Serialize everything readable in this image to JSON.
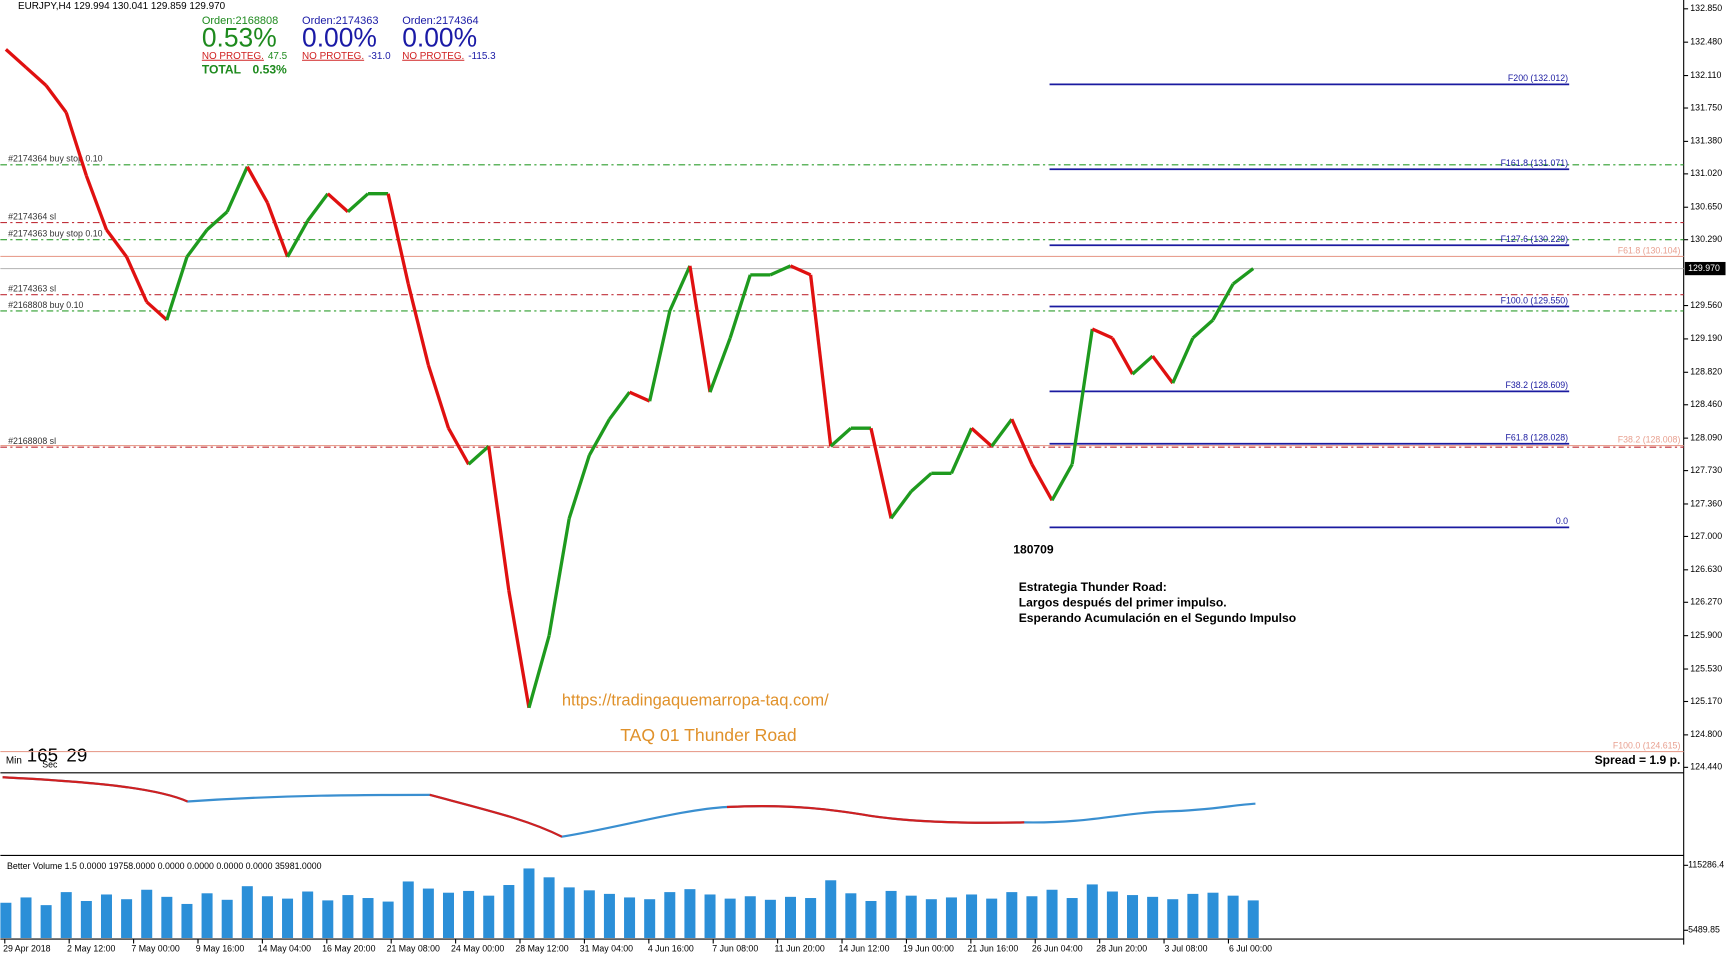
{
  "header": "EURJPY,H4  129.994 130.041 129.859 129.970",
  "orders": [
    {
      "id": "Orden:2168808",
      "pct": "0.53%",
      "status": "NO PROTEG.",
      "pl": "47.5",
      "color": "#1e8a1e"
    },
    {
      "id": "Orden:2174363",
      "pct": "0.00%",
      "status": "NO PROTEG.",
      "pl": "-31.0",
      "color": "#1a1aa6"
    },
    {
      "id": "Orden:2174364",
      "pct": "0.00%",
      "status": "NO PROTEG.",
      "pl": "-115.3",
      "color": "#1a1aa6"
    }
  ],
  "total": {
    "label": "TOTAL",
    "value": "0.53%"
  },
  "price_axis": {
    "range": [
      124.44,
      132.85
    ],
    "ticks": [
      {
        "value": 132.85,
        "label": "132.850"
      },
      {
        "value": 132.48,
        "label": "132.480"
      },
      {
        "value": 132.11,
        "label": "132.110"
      },
      {
        "value": 131.75,
        "label": "131.750"
      },
      {
        "value": 131.38,
        "label": "131.380"
      },
      {
        "value": 131.02,
        "label": "131.020"
      },
      {
        "value": 130.65,
        "label": "130.650"
      },
      {
        "value": 130.29,
        "label": "130.290"
      },
      {
        "value": 129.56,
        "label": "129.560"
      },
      {
        "value": 129.19,
        "label": "129.190"
      },
      {
        "value": 128.82,
        "label": "128.820"
      },
      {
        "value": 128.46,
        "label": "128.460"
      },
      {
        "value": 128.09,
        "label": "128.090"
      },
      {
        "value": 127.73,
        "label": "127.730"
      },
      {
        "value": 127.36,
        "label": "127.360"
      },
      {
        "value": 127,
        "label": "127.000"
      },
      {
        "value": 126.63,
        "label": "126.630"
      },
      {
        "value": 126.27,
        "label": "126.270"
      },
      {
        "value": 125.9,
        "label": "125.900"
      },
      {
        "value": 125.53,
        "label": "125.530"
      },
      {
        "value": 125.17,
        "label": "125.170"
      },
      {
        "value": 124.8,
        "label": "124.800"
      },
      {
        "value": 124.44,
        "label": "124.440"
      }
    ],
    "current": {
      "value": 129.97,
      "label": "129.970"
    }
  },
  "order_lines": [
    {
      "label": "#2174364 buy stop 0.10",
      "price": 131.12,
      "color": "#2e9e2e"
    },
    {
      "label": "#2174364 sl",
      "price": 130.48,
      "color": "#c0303a"
    },
    {
      "label": "#2174363 buy stop 0.10",
      "price": 130.29,
      "color": "#2e9e2e"
    },
    {
      "label": "#2174363 sl",
      "price": 129.68,
      "color": "#c0303a"
    },
    {
      "label": "#2168808 buy 0.10",
      "price": 129.5,
      "color": "#2e9e2e"
    },
    {
      "label": "#2168808 sl",
      "price": 127.99,
      "color": "#c0303a"
    }
  ],
  "fib_lines": [
    {
      "label": "F200 (132.012)",
      "price": 132.012
    },
    {
      "label": "F161.8 (131.071)",
      "price": 131.071
    },
    {
      "label": "F127.6 (130.229)",
      "price": 130.229
    },
    {
      "label": "F100.0 (129.550)",
      "price": 129.55
    },
    {
      "label": "F38.2 (128.609)",
      "price": 128.609
    },
    {
      "label": "F61.8 (128.028)",
      "price": 128.028
    },
    {
      "label": "0.0",
      "price": 127.1
    }
  ],
  "fib_lines_2": [
    {
      "label": "F61.8 (130.104)",
      "price": 130.104
    },
    {
      "label": "F38.2 (128.008)",
      "price": 128.008
    },
    {
      "label": "F100.0 (124.615)",
      "price": 124.615
    }
  ],
  "price_trace": [
    132.4,
    132.2,
    132.0,
    131.7,
    131.0,
    130.4,
    130.1,
    129.6,
    129.4,
    130.1,
    130.4,
    130.6,
    131.1,
    130.7,
    130.1,
    130.5,
    130.8,
    130.6,
    130.8,
    130.8,
    129.8,
    128.9,
    128.2,
    127.8,
    128.0,
    126.4,
    125.1,
    125.9,
    127.2,
    127.9,
    128.3,
    128.6,
    128.5,
    129.5,
    130.0,
    128.6,
    129.2,
    129.9,
    129.9,
    130.0,
    129.9,
    128.0,
    128.2,
    128.2,
    127.2,
    127.5,
    127.7,
    127.7,
    128.2,
    128.0,
    128.3,
    127.8,
    127.4,
    127.8,
    129.3,
    129.2,
    128.8,
    129.0,
    128.7,
    129.2,
    129.4,
    129.8,
    129.97
  ],
  "time_axis": [
    "29 Apr 2018",
    "2 May 12:00",
    "7 May 00:00",
    "9 May 16:00",
    "14 May 04:00",
    "16 May 20:00",
    "21 May 08:00",
    "24 May 00:00",
    "28 May 12:00",
    "31 May 04:00",
    "4 Jun 16:00",
    "7 Jun 08:00",
    "11 Jun 20:00",
    "14 Jun 12:00",
    "19 Jun 00:00",
    "21 Jun 16:00",
    "26 Jun 04:00",
    "28 Jun 20:00",
    "3 Jul 08:00",
    "6 Jul 00:00"
  ],
  "annotations": {
    "date_code": "180709",
    "strategy": [
      "Estrategia Thunder Road:",
      "Largos después del primer impulso.",
      "Esperando Acumulación en el Segundo Impulso"
    ],
    "url": "https://tradingaquemarropa-taq.com/",
    "name": "TAQ 01 Thunder Road"
  },
  "timer": {
    "min_label": "Min",
    "min": "165",
    "sec": "29",
    "sec_label": "Sec"
  },
  "spread": "Spread = 1.9 p.",
  "volume": {
    "title": "Better Volume 1.5 0.0000 19758.0000 0.0000 0.0000 0.0000 0.0000 35981.0000",
    "ticks": [
      115286.4,
      5489.85
    ],
    "values": [
      52000,
      61000,
      48000,
      70000,
      55000,
      66000,
      58000,
      74000,
      62000,
      50000,
      68000,
      57000,
      80000,
      63000,
      59000,
      71000,
      56000,
      65000,
      60000,
      54000,
      88000,
      76000,
      69000,
      72000,
      64000,
      82000,
      110000,
      95000,
      78000,
      73000,
      67000,
      61000,
      58000,
      70000,
      75000,
      66000,
      59000,
      63000,
      57000,
      62000,
      60000,
      90000,
      68000,
      55000,
      72000,
      64000,
      58000,
      61000,
      66000,
      59000,
      70000,
      63000,
      74000,
      60000,
      83000,
      71000,
      65000,
      62000,
      58000,
      67000,
      69000,
      64000,
      56000
    ]
  }
}
